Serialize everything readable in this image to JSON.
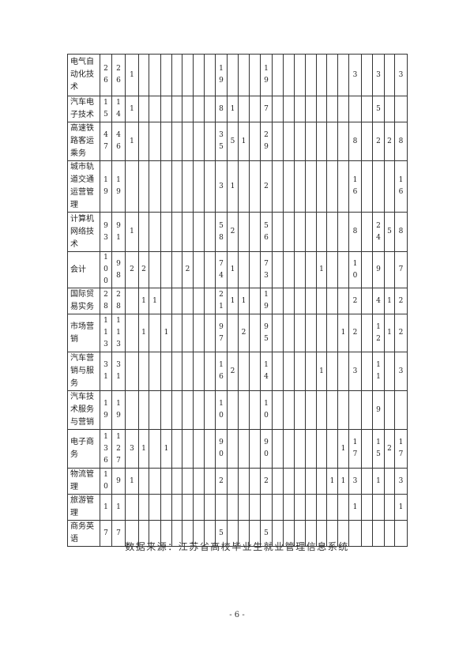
{
  "table": {
    "rows": [
      {
        "name": "电气自动化技术",
        "cells": [
          "26",
          "26",
          "1",
          "",
          "",
          "",
          "",
          "",
          "",
          "",
          "19",
          "",
          "",
          "",
          "19",
          "",
          "",
          "",
          "",
          "",
          "",
          "",
          "3",
          "",
          "3",
          "",
          "3"
        ]
      },
      {
        "name": "汽车电子技术",
        "cells": [
          "15",
          "14",
          "1",
          "",
          "",
          "",
          "",
          "",
          "",
          "",
          "8",
          "1",
          "",
          "",
          "7",
          "",
          "",
          "",
          "",
          "",
          "",
          "",
          "",
          "",
          "5",
          "",
          ""
        ]
      },
      {
        "name": "高速铁路客运乘务",
        "cells": [
          "47",
          "46",
          "1",
          "",
          "",
          "",
          "",
          "",
          "",
          "",
          "35",
          "5",
          "1",
          "",
          "29",
          "",
          "",
          "",
          "",
          "",
          "",
          "",
          "8",
          "",
          "2",
          "2",
          "8"
        ]
      },
      {
        "name": "城市轨道交通运营管理",
        "cells": [
          "19",
          "19",
          "",
          "",
          "",
          "",
          "",
          "",
          "",
          "",
          "3",
          "1",
          "",
          "",
          "2",
          "",
          "",
          "",
          "",
          "",
          "",
          "",
          "16",
          "",
          "",
          "",
          "16"
        ]
      },
      {
        "name": "计算机网络技术",
        "cells": [
          "93",
          "91",
          "1",
          "",
          "",
          "",
          "",
          "",
          "",
          "",
          "58",
          "2",
          "",
          "",
          "56",
          "",
          "",
          "",
          "",
          "",
          "",
          "",
          "8",
          "",
          "24",
          "5",
          "8"
        ]
      },
      {
        "name": "会计",
        "cells": [
          "100",
          "98",
          "2",
          "2",
          "",
          "",
          "",
          "2",
          "",
          "",
          "74",
          "1",
          "",
          "",
          "73",
          "",
          "",
          "",
          "",
          "1",
          "",
          "",
          "10",
          "",
          "9",
          "",
          "7"
        ]
      },
      {
        "name": "国际贸易实务",
        "cells": [
          "28",
          "28",
          "",
          "1",
          "1",
          "",
          "",
          "",
          "",
          "",
          "21",
          "1",
          "1",
          "",
          "19",
          "",
          "",
          "",
          "",
          "",
          "",
          "",
          "2",
          "",
          "4",
          "1",
          "2"
        ]
      },
      {
        "name": "市场营销",
        "cells": [
          "113",
          "113",
          "",
          "1",
          "",
          "1",
          "",
          "",
          "",
          "",
          "97",
          "",
          "2",
          "",
          "95",
          "",
          "",
          "",
          "",
          "",
          "",
          "1",
          "2",
          "",
          "12",
          "1",
          "2"
        ]
      },
      {
        "name": "汽车营销与服务",
        "cells": [
          "31",
          "31",
          "",
          "",
          "",
          "",
          "",
          "",
          "",
          "",
          "16",
          "2",
          "",
          "",
          "14",
          "",
          "",
          "",
          "",
          "1",
          "",
          "",
          "3",
          "",
          "11",
          "",
          "3"
        ]
      },
      {
        "name": "汽车技术服务与营销",
        "cells": [
          "19",
          "19",
          "",
          "",
          "",
          "",
          "",
          "",
          "",
          "",
          "10",
          "",
          "",
          "",
          "10",
          "",
          "",
          "",
          "",
          "",
          "",
          "",
          "",
          "",
          "9",
          "",
          ""
        ]
      },
      {
        "name": "电子商务",
        "cells": [
          "136",
          "127",
          "3",
          "1",
          "",
          "1",
          "",
          "",
          "",
          "",
          "90",
          "",
          "",
          "",
          "90",
          "",
          "",
          "",
          "",
          "",
          "",
          "1",
          "17",
          "",
          "15",
          "2",
          "17"
        ]
      },
      {
        "name": "物流管理",
        "cells": [
          "10",
          "9",
          "1",
          "",
          "",
          "",
          "",
          "",
          "",
          "",
          "2",
          "",
          "",
          "",
          "2",
          "",
          "",
          "",
          "",
          "",
          "1",
          "1",
          "3",
          "",
          "1",
          "",
          "3"
        ]
      },
      {
        "name": "旅游管理",
        "cells": [
          "1",
          "1",
          "",
          "",
          "",
          "",
          "",
          "",
          "",
          "",
          "",
          "",
          "",
          "",
          "",
          "",
          "",
          "",
          "",
          "",
          "",
          "",
          "1",
          "",
          "",
          "",
          "1"
        ]
      },
      {
        "name": "商务英语",
        "cells": [
          "7",
          "7",
          "",
          "",
          "",
          "",
          "",
          "",
          "",
          "",
          "5",
          "",
          "",
          "",
          "5",
          "",
          "",
          "",
          "",
          "",
          "",
          "",
          "",
          "",
          "",
          "",
          ""
        ]
      }
    ]
  },
  "caption": "数据来源：江苏省高校毕业生就业管理信息系统",
  "page_number": "- 6 -"
}
